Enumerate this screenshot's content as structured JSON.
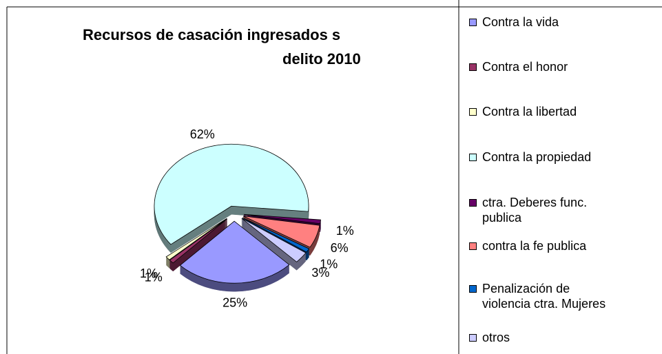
{
  "chart_data": {
    "type": "pie",
    "title": [
      "Recursos de casación ingresados s",
      "delito 2010"
    ],
    "categories": [
      "Contra la vida",
      "Contra el honor",
      "Contra la libertad",
      "Contra la propiedad",
      "ctra. Deberes func. publica",
      "contra la fe publica",
      "Penalización de violencia ctra. Mujeres",
      "otros"
    ],
    "values": [
      25,
      1,
      1,
      62,
      1,
      6,
      1,
      3
    ],
    "value_labels": [
      "25%",
      "1%",
      "1%",
      "62%",
      "1%",
      "6%",
      "1%",
      "3%"
    ],
    "colors": [
      "#9999ff",
      "#993366",
      "#ffffcc",
      "#ccffff",
      "#660066",
      "#ff8080",
      "#0066cc",
      "#ccccff"
    ],
    "legend": "right"
  }
}
